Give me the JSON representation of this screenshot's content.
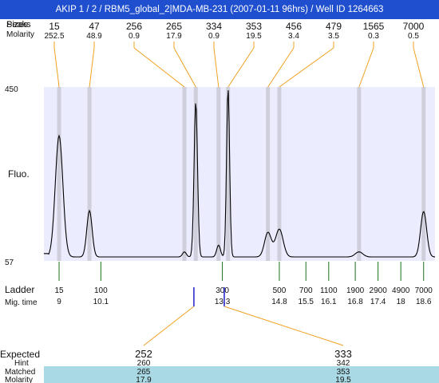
{
  "header": {
    "title": "AKIP 1 / 2 / RBM5_global_2|MDA-MB-231 (2007-01-11 96hrs) / Well ID 1264663"
  },
  "chart_data": {
    "type": "line",
    "title": "AKIP 1 / 2 / RBM5_global_2|MDA-MB-231 (2007-01-11 96hrs) / Well ID 1264663",
    "ylabel": "Fluo.",
    "ylim": [
      57,
      450
    ],
    "xlim": [
      8.6,
      18.9
    ],
    "x_axis_label": "Mig. time",
    "ladder_label": "Ladder",
    "colors": {
      "header": "#1f4fcf",
      "plot_bg": "#ececff",
      "band": "#cfcfdc",
      "connector": "#f0a020",
      "ladder_tick": "#1d6b1d",
      "expected": "#ff2020",
      "highlight_row": "#a9d9e4",
      "marker": "#2020cc",
      "trace": "#000000"
    },
    "top_rows": {
      "labels": [
        "Peaks",
        "Sizes",
        "Molarity"
      ],
      "sizes": [
        "15",
        "47",
        "256",
        "265",
        "334",
        "353",
        "456",
        "479",
        "1565",
        "7000"
      ],
      "molarity": [
        "252.5",
        "48.9",
        "0.9",
        "17.9",
        "0.9",
        "19.5",
        "3.4",
        "3.5",
        "0.3",
        "0.5"
      ]
    },
    "peaks": [
      {
        "size": 15,
        "mig_time": 9.0,
        "height": 0.72
      },
      {
        "size": 47,
        "mig_time": 9.8,
        "height": 0.275
      },
      {
        "size": 256,
        "mig_time": 12.3,
        "height": 0.03
      },
      {
        "size": 265,
        "mig_time": 12.6,
        "height": 0.92
      },
      {
        "size": 334,
        "mig_time": 13.2,
        "height": 0.07
      },
      {
        "size": 353,
        "mig_time": 13.45,
        "height": 1.0
      },
      {
        "size": 456,
        "mig_time": 14.5,
        "height": 0.145
      },
      {
        "size": 479,
        "mig_time": 14.8,
        "height": 0.165
      },
      {
        "size": 1565,
        "mig_time": 16.9,
        "height": 0.03
      },
      {
        "size": 7000,
        "mig_time": 18.6,
        "height": 0.27
      }
    ],
    "ladder": [
      {
        "size": "15",
        "time": "9"
      },
      {
        "size": "100",
        "time": "10.1"
      },
      {
        "size": "300",
        "time": "13.3"
      },
      {
        "size": "500",
        "time": "14.8"
      },
      {
        "size": "700",
        "time": "15.5"
      },
      {
        "size": "1100",
        "time": "16.1"
      },
      {
        "size": "1900",
        "time": "16.8"
      },
      {
        "size": "2900",
        "time": "17.4"
      },
      {
        "size": "4900",
        "time": "18"
      },
      {
        "size": "7000",
        "time": "18.6"
      }
    ],
    "expected": {
      "row_labels": [
        "Expected",
        "Hint",
        "Matched",
        "Molarity"
      ],
      "items": [
        {
          "expected": "252",
          "hint": "260",
          "matched": "265",
          "molarity": "17.9",
          "mig_time": 12.55
        },
        {
          "expected": "333",
          "hint": "342",
          "matched": "353",
          "molarity": "19.5",
          "mig_time": 13.35
        }
      ]
    }
  }
}
